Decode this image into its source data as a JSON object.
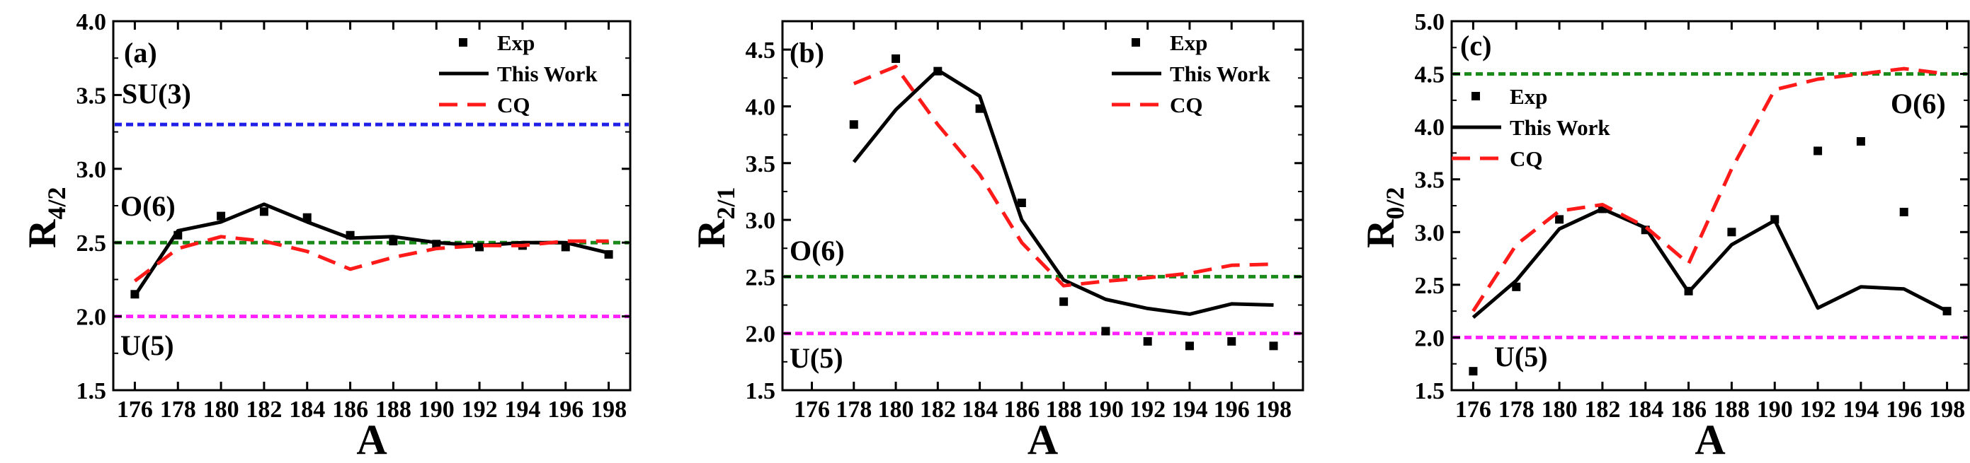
{
  "chart_data": [
    {
      "type": "line",
      "panel_label": "(a)",
      "xlabel": "A",
      "ylabel": {
        "base": "R",
        "sub": "4/2"
      },
      "xlim": [
        175,
        199
      ],
      "ylim": [
        1.5,
        4.0
      ],
      "xticks": [
        "176",
        "178",
        "180",
        "182",
        "184",
        "186",
        "188",
        "190",
        "192",
        "194",
        "196",
        "198"
      ],
      "yticks": [
        "1.5",
        "2.0",
        "2.5",
        "3.0",
        "3.5",
        "4.0"
      ],
      "legend_position": "top-right",
      "legend": [
        "Exp",
        "This Work",
        "CQ"
      ],
      "reference_lines": [
        {
          "label": "SU(3)",
          "y": 3.3,
          "color": "#1f1fe6"
        },
        {
          "label": "O(6)",
          "y": 2.5,
          "color": "#1a8a1a"
        },
        {
          "label": "U(5)",
          "y": 2.0,
          "color": "#ff22ff"
        }
      ],
      "series": [
        {
          "name": "Exp",
          "style": "scatter",
          "color": "#000000",
          "x": [
            176,
            178,
            180,
            182,
            184,
            186,
            188,
            190,
            192,
            194,
            196,
            198
          ],
          "y": [
            2.15,
            2.55,
            2.68,
            2.71,
            2.67,
            2.55,
            2.51,
            2.49,
            2.47,
            2.48,
            2.47,
            2.42
          ]
        },
        {
          "name": "This Work",
          "style": "solid",
          "color": "#000000",
          "x": [
            176,
            178,
            180,
            182,
            184,
            186,
            188,
            190,
            192,
            194,
            196,
            198
          ],
          "y": [
            2.14,
            2.58,
            2.64,
            2.76,
            2.64,
            2.53,
            2.54,
            2.5,
            2.48,
            2.5,
            2.5,
            2.43
          ]
        },
        {
          "name": "CQ",
          "style": "dashed",
          "color": "#ff1a1a",
          "x": [
            176,
            178,
            180,
            182,
            184,
            186,
            188,
            190,
            192,
            194,
            196,
            198
          ],
          "y": [
            2.24,
            2.46,
            2.54,
            2.51,
            2.44,
            2.32,
            2.4,
            2.46,
            2.48,
            2.48,
            2.51,
            2.51
          ]
        }
      ]
    },
    {
      "type": "line",
      "panel_label": "(b)",
      "xlabel": "A",
      "ylabel": {
        "base": "R",
        "sub": "2/1"
      },
      "xlim": [
        174.6,
        199.4
      ],
      "ylim": [
        1.5,
        4.75
      ],
      "xticks": [
        "176",
        "178",
        "180",
        "182",
        "184",
        "186",
        "188",
        "190",
        "192",
        "194",
        "196",
        "198"
      ],
      "yticks": [
        "1.5",
        "2.0",
        "2.5",
        "3.0",
        "3.5",
        "4.0",
        "4.5"
      ],
      "legend_position": "top-right",
      "legend": [
        "Exp",
        "This Work",
        "CQ"
      ],
      "reference_lines": [
        {
          "label": "O(6)",
          "y": 2.5,
          "color": "#1a8a1a"
        },
        {
          "label": "U(5)",
          "y": 2.0,
          "color": "#ff22ff"
        }
      ],
      "series": [
        {
          "name": "Exp",
          "style": "scatter",
          "color": "#000000",
          "x": [
            178,
            180,
            182,
            184,
            186,
            188,
            190,
            192,
            194,
            196,
            198
          ],
          "y": [
            3.84,
            4.42,
            4.31,
            3.98,
            3.15,
            2.28,
            2.02,
            1.93,
            1.89,
            1.93,
            1.89
          ]
        },
        {
          "name": "This Work",
          "style": "solid",
          "color": "#000000",
          "x": [
            178,
            180,
            182,
            184,
            186,
            188,
            190,
            192,
            194,
            196,
            198
          ],
          "y": [
            3.51,
            3.97,
            4.32,
            4.09,
            3.0,
            2.47,
            2.3,
            2.22,
            2.17,
            2.26,
            2.25
          ]
        },
        {
          "name": "CQ",
          "style": "dashed",
          "color": "#ff1a1a",
          "x": [
            178,
            180,
            182,
            184,
            186,
            188,
            190,
            192,
            194,
            196,
            198
          ],
          "y": [
            4.2,
            4.35,
            3.84,
            3.4,
            2.8,
            2.42,
            2.46,
            2.49,
            2.53,
            2.6,
            2.61
          ]
        }
      ]
    },
    {
      "type": "line",
      "panel_label": "(c)",
      "xlabel": "A",
      "ylabel": {
        "base": "R",
        "sub": "0/2"
      },
      "xlim": [
        175,
        199
      ],
      "ylim": [
        1.5,
        5.0
      ],
      "xticks": [
        "176",
        "178",
        "180",
        "182",
        "184",
        "186",
        "188",
        "190",
        "192",
        "194",
        "196",
        "198"
      ],
      "yticks": [
        "1.5",
        "2.0",
        "2.5",
        "3.0",
        "3.5",
        "4.0",
        "4.5",
        "5.0"
      ],
      "legend_position": "top-left",
      "legend": [
        "Exp",
        "This Work",
        "CQ"
      ],
      "reference_lines": [
        {
          "label": "O(6)",
          "y": 4.5,
          "color": "#1a8a1a"
        },
        {
          "label": "U(5)",
          "y": 2.0,
          "color": "#ff22ff"
        }
      ],
      "series": [
        {
          "name": "Exp",
          "style": "scatter",
          "color": "#000000",
          "x": [
            176,
            178,
            180,
            182,
            184,
            186,
            188,
            190,
            192,
            194,
            196,
            198
          ],
          "y": [
            1.68,
            2.48,
            3.12,
            3.22,
            3.02,
            2.44,
            3.0,
            3.12,
            3.77,
            3.86,
            3.19,
            2.25
          ]
        },
        {
          "name": "This Work",
          "style": "solid",
          "color": "#000000",
          "x": [
            176,
            178,
            180,
            182,
            184,
            186,
            188,
            190,
            192,
            194,
            196,
            198
          ],
          "y": [
            2.19,
            2.54,
            3.03,
            3.22,
            3.04,
            2.43,
            2.88,
            3.11,
            2.28,
            2.48,
            2.46,
            2.25
          ]
        },
        {
          "name": "CQ",
          "style": "dashed",
          "color": "#ff1a1a",
          "x": [
            176,
            178,
            180,
            182,
            184,
            186,
            188,
            190,
            192,
            194,
            196,
            198
          ],
          "y": [
            2.25,
            2.88,
            3.2,
            3.26,
            3.05,
            2.7,
            3.6,
            4.35,
            4.45,
            4.5,
            4.55,
            4.5
          ]
        }
      ]
    }
  ]
}
